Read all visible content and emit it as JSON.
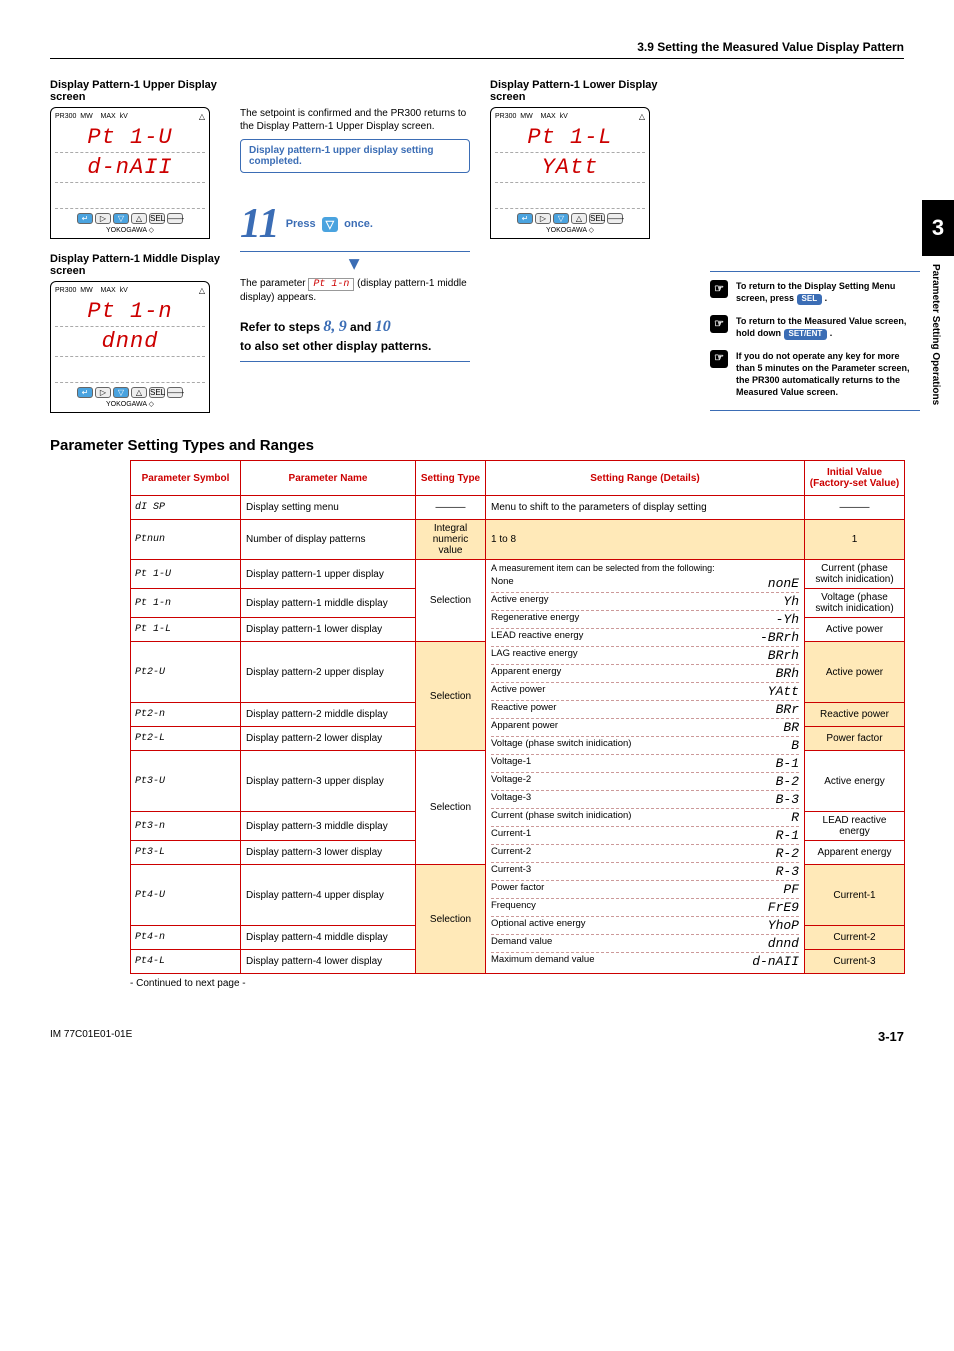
{
  "header": {
    "section": "3.9    Setting the Measured Value Display Pattern"
  },
  "sideTab": {
    "num": "3",
    "label": "Parameter Setting Operations"
  },
  "screens": {
    "upper": {
      "title": "Display Pattern-1 Upper Display screen",
      "l1": "Pt 1-U",
      "l2": "d-nAII"
    },
    "middle": {
      "title": "Display Pattern-1 Middle Display screen",
      "l1": "Pt 1-n",
      "l2": "dnnd"
    },
    "lower": {
      "title": "Display Pattern-1 Lower Display screen",
      "l1": "Pt 1-L",
      "l2": "YAtt"
    }
  },
  "notes": {
    "confirm": "The setpoint is confirmed and the PR300 returns to the Display Pattern-1 Upper Display screen.",
    "callout": "Display pattern-1 upper display setting completed.",
    "press": "Press",
    "once": "once.",
    "param_intro": "The parameter ",
    "param_sym": "Pt 1-n",
    "param_rest": " (display pattern-1 middle display) appears.",
    "refer_a": "Refer to steps ",
    "r8": "8,",
    "r9": "9",
    "rand": " and ",
    "r10": "10",
    "refer_b": "to also set other display patterns."
  },
  "tips": {
    "t1a": "To return to the Display Setting Menu screen, press ",
    "t1b": "SEL",
    "t1c": " .",
    "t2a": "To return to the Measured Value screen, hold down ",
    "t2b": "SET/ENT",
    "t2c": " .",
    "t3": "If you do not operate any key for more than 5 minutes on the Parameter screen, the PR300 automatically returns to the Measured Value screen."
  },
  "tableTitle": "Parameter Setting Types and Ranges",
  "th": {
    "sym": "Parameter Symbol",
    "name": "Parameter Name",
    "type": "Setting Type",
    "range": "Setting Range (Details)",
    "init": "Initial Value (Factory-set Value)"
  },
  "rangeHead": "A measurement item can be selected from the following:",
  "ranges": [
    {
      "n": "None",
      "g": "nonE"
    },
    {
      "n": "Active energy",
      "g": "Yh"
    },
    {
      "n": "Regenerative energy",
      "g": "-Yh"
    },
    {
      "n": "LEAD reactive energy",
      "g": "-BRrh"
    },
    {
      "n": "LAG reactive energy",
      "g": "BRrh"
    },
    {
      "n": "Apparent energy",
      "g": "BRh"
    },
    {
      "n": "Active power",
      "g": "YAtt"
    },
    {
      "n": "Reactive power",
      "g": "BRr"
    },
    {
      "n": "Apparent power",
      "g": "BR"
    },
    {
      "n": "Voltage (phase switch inidication)",
      "g": "B"
    },
    {
      "n": "Voltage-1",
      "g": "B-1"
    },
    {
      "n": "Voltage-2",
      "g": "B-2"
    },
    {
      "n": "Voltage-3",
      "g": "B-3"
    },
    {
      "n": "Current (phase switch inidication)",
      "g": "R"
    },
    {
      "n": "Current-1",
      "g": "R-1"
    },
    {
      "n": "Current-2",
      "g": "R-2"
    },
    {
      "n": "Current-3",
      "g": "R-3"
    },
    {
      "n": "Power factor",
      "g": "PF"
    },
    {
      "n": "Frequency",
      "g": "FrE9"
    },
    {
      "n": "Optional active energy",
      "g": "YhoP"
    },
    {
      "n": "Demand value",
      "g": "dnnd"
    },
    {
      "n": "Maximum demand value",
      "g": "d-nAII"
    }
  ],
  "rows": [
    {
      "sym": "dI SP",
      "name": "Display setting menu",
      "type": "———",
      "typeShade": false,
      "rangeSpecial": "menu",
      "init": "———",
      "initShade": false
    },
    {
      "sym": "Ptnun",
      "name": "Number of display patterns",
      "type": "Integral numeric value",
      "typeShade": true,
      "rangeSpecial": "1to8",
      "init": "1",
      "initShade": true
    },
    {
      "sym": "Pt 1-U",
      "name": "Display pattern-1 upper display",
      "type": "Selection",
      "span": 3,
      "init": "Current (phase switch inidication)"
    },
    {
      "sym": "Pt 1-n",
      "name": "Display pattern-1 middle display",
      "init": "Voltage (phase switch inidication)"
    },
    {
      "sym": "Pt 1-L",
      "name": "Display pattern-1 lower display",
      "init": "Active power"
    },
    {
      "sym": "Pt2-U",
      "name": "Display pattern-2 upper display",
      "type": "Selection",
      "span": 3,
      "typeShade": true,
      "init": "Active power",
      "initShade": true
    },
    {
      "sym": "Pt2-n",
      "name": "Display pattern-2 middle display",
      "init": "Reactive power",
      "initShade": true
    },
    {
      "sym": "Pt2-L",
      "name": "Display pattern-2 lower display",
      "init": "Power factor",
      "initShade": true
    },
    {
      "sym": "Pt3-U",
      "name": "Display pattern-3 upper display",
      "type": "Selection",
      "span": 3,
      "init": "Active energy"
    },
    {
      "sym": "Pt3-n",
      "name": "Display pattern-3 middle display",
      "init": "LEAD reactive energy"
    },
    {
      "sym": "Pt3-L",
      "name": "Display pattern-3 lower display",
      "init": "Apparent energy"
    },
    {
      "sym": "Pt4-U",
      "name": "Display pattern-4 upper display",
      "type": "Selection",
      "span": 3,
      "typeShade": true,
      "init": "Current-1",
      "initShade": true
    },
    {
      "sym": "Pt4-n",
      "name": "Display pattern-4 middle display",
      "init": "Current-2",
      "initShade": true
    },
    {
      "sym": "Pt4-L",
      "name": "Display pattern-4 lower display",
      "init": "Current-3",
      "initShade": true
    }
  ],
  "menuRange": "Menu to shift to the parameters of display setting",
  "oneToEight": "1 to 8",
  "continued": "- Continued to next page -",
  "footer": {
    "doc": "IM 77C01E01-01E",
    "page": "3-17"
  }
}
